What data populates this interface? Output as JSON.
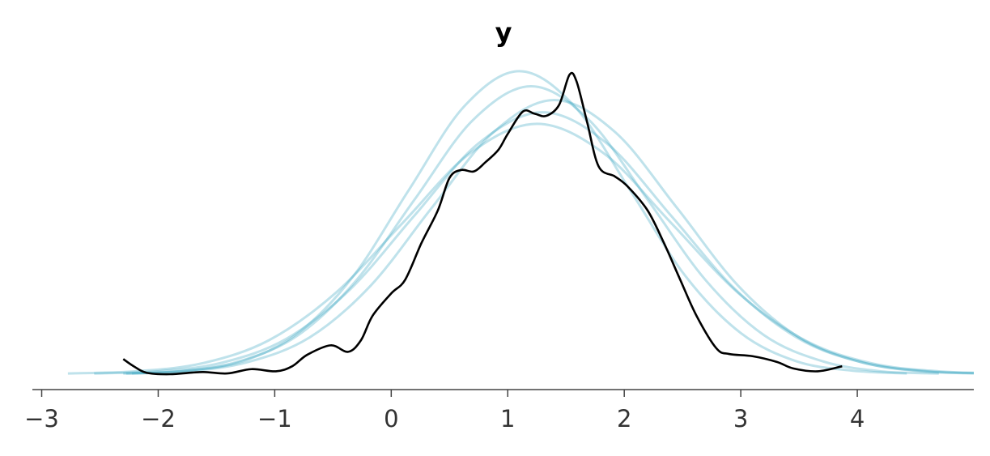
{
  "chart_data": {
    "type": "line",
    "title": "y",
    "xlim": [
      -3.08,
      5.0
    ],
    "ylim": [
      0,
      0.44
    ],
    "xticks": [
      -3,
      -2,
      -1,
      0,
      1,
      2,
      3,
      4
    ],
    "series": [
      {
        "color": "#2a9fbc",
        "alpha": 0.3,
        "x": [
          -2.3,
          -1.8,
          -1.3,
          -0.8,
          -0.3,
          0.2,
          0.7,
          1.2,
          1.7,
          2.2,
          2.7,
          3.2,
          3.7,
          4.2,
          4.7
        ],
        "values": [
          0.001,
          0.004,
          0.018,
          0.054,
          0.13,
          0.242,
          0.352,
          0.399,
          0.352,
          0.242,
          0.13,
          0.054,
          0.018,
          0.004,
          0.001
        ]
      },
      {
        "color": "#2a9fbc",
        "alpha": 0.3,
        "x": [
          -2.55,
          -2.0,
          -1.45,
          -0.9,
          -0.35,
          0.2,
          0.75,
          1.3,
          1.85,
          2.4,
          2.95,
          3.5,
          4.05,
          4.6,
          5.15
        ],
        "values": [
          0.001,
          0.004,
          0.016,
          0.049,
          0.118,
          0.22,
          0.32,
          0.363,
          0.32,
          0.22,
          0.118,
          0.049,
          0.016,
          0.004,
          0.001
        ]
      },
      {
        "color": "#2a9fbc",
        "alpha": 0.3,
        "x": [
          -2.225,
          -1.75,
          -1.275,
          -0.8,
          -0.325,
          0.15,
          0.625,
          1.1,
          1.575,
          2.05,
          2.525,
          3.0,
          3.475,
          3.95,
          4.425
        ],
        "values": [
          0.001,
          0.005,
          0.018,
          0.057,
          0.136,
          0.255,
          0.371,
          0.42,
          0.371,
          0.255,
          0.136,
          0.057,
          0.018,
          0.005,
          0.001
        ]
      },
      {
        "color": "#2a9fbc",
        "alpha": 0.3,
        "x": [
          -2.275,
          -1.75,
          -1.225,
          -0.7,
          -0.175,
          0.35,
          0.875,
          1.4,
          1.925,
          2.45,
          2.975,
          3.5,
          4.025,
          4.55,
          5.075
        ],
        "values": [
          0.001,
          0.004,
          0.017,
          0.051,
          0.123,
          0.231,
          0.335,
          0.38,
          0.335,
          0.231,
          0.123,
          0.051,
          0.017,
          0.004,
          0.001
        ]
      },
      {
        "color": "#2a9fbc",
        "alpha": 0.3,
        "x": [
          -2.775,
          -2.2,
          -1.625,
          -1.05,
          -0.475,
          0.1,
          0.675,
          1.25,
          1.825,
          2.4,
          2.975,
          3.55,
          4.125,
          4.7,
          5.275
        ],
        "values": [
          0.001,
          0.004,
          0.015,
          0.047,
          0.113,
          0.21,
          0.306,
          0.347,
          0.306,
          0.21,
          0.113,
          0.047,
          0.015,
          0.004,
          0.001
        ]
      },
      {
        "color": "#000000",
        "alpha": 1,
        "x": [
          -2.3,
          -2.21,
          -2.1,
          -1.9,
          -1.62,
          -1.41,
          -1.2,
          -0.99,
          -0.85,
          -0.72,
          -0.52,
          -0.37,
          -0.26,
          -0.16,
          0.0,
          0.12,
          0.26,
          0.4,
          0.5,
          0.6,
          0.71,
          0.81,
          0.92,
          1.0,
          1.13,
          1.23,
          1.33,
          1.44,
          1.53,
          1.59,
          1.68,
          1.78,
          1.92,
          2.03,
          2.2,
          2.34,
          2.48,
          2.62,
          2.79,
          2.9,
          3.1,
          3.31,
          3.45,
          3.66,
          3.87
        ],
        "values": [
          0.021,
          0.011,
          0.002,
          0.0,
          0.003,
          0.001,
          0.007,
          0.004,
          0.011,
          0.027,
          0.04,
          0.031,
          0.047,
          0.081,
          0.112,
          0.131,
          0.182,
          0.227,
          0.272,
          0.283,
          0.281,
          0.294,
          0.311,
          0.333,
          0.364,
          0.361,
          0.358,
          0.373,
          0.415,
          0.406,
          0.35,
          0.288,
          0.274,
          0.26,
          0.227,
          0.182,
          0.131,
          0.081,
          0.036,
          0.028,
          0.025,
          0.017,
          0.008,
          0.004,
          0.011
        ]
      }
    ]
  }
}
